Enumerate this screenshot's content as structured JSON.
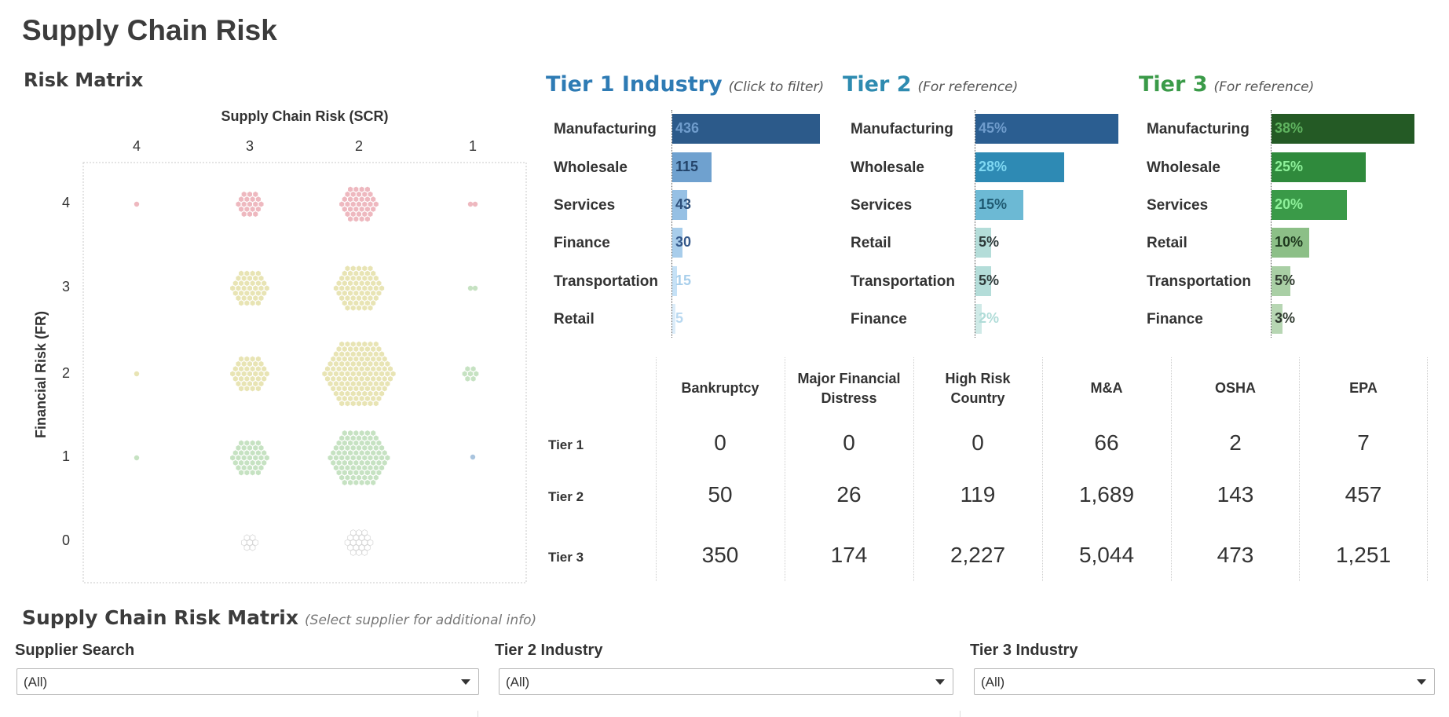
{
  "title": "Supply Chain Risk",
  "risk_matrix": {
    "title": "Risk Matrix",
    "x_label": "Supply Chain Risk (SCR)",
    "y_label": "Financial Risk (FR)",
    "x_ticks": [
      "4",
      "3",
      "2",
      "1"
    ],
    "y_ticks": [
      "4",
      "3",
      "2",
      "1",
      "0"
    ],
    "colors": {
      "red": "#eeb8bf",
      "yellow": "#e8e4b4",
      "green": "#c6e2c2",
      "gray": "#d4d4d4"
    }
  },
  "tier1": {
    "title": "Tier 1 Industry",
    "note": "(Click to filter)",
    "color": "#2e5d8e",
    "rows": [
      {
        "label": "Manufacturing",
        "value": "436",
        "fraction": 1.0
      },
      {
        "label": "Wholesale",
        "value": "115",
        "fraction": 0.264
      },
      {
        "label": "Services",
        "value": "43",
        "fraction": 0.099
      },
      {
        "label": "Finance",
        "value": "30",
        "fraction": 0.069
      },
      {
        "label": "Transportation",
        "value": "15",
        "fraction": 0.034
      },
      {
        "label": "Retail",
        "value": "5",
        "fraction": 0.011
      }
    ]
  },
  "tier2": {
    "title": "Tier 2",
    "note": "(For reference)",
    "color": "#2e8bb0",
    "rows": [
      {
        "label": "Manufacturing",
        "value": "45%",
        "fraction": 1.0
      },
      {
        "label": "Wholesale",
        "value": "28%",
        "fraction": 0.622
      },
      {
        "label": "Services",
        "value": "15%",
        "fraction": 0.333
      },
      {
        "label": "Retail",
        "value": "5%",
        "fraction": 0.111
      },
      {
        "label": "Transportation",
        "value": "5%",
        "fraction": 0.111
      },
      {
        "label": "Finance",
        "value": "2%",
        "fraction": 0.044
      }
    ]
  },
  "tier3": {
    "title": "Tier 3",
    "note": "(For reference)",
    "color": "#2e6b2e",
    "rows": [
      {
        "label": "Manufacturing",
        "value": "38%",
        "fraction": 1.0
      },
      {
        "label": "Wholesale",
        "value": "25%",
        "fraction": 0.658
      },
      {
        "label": "Services",
        "value": "20%",
        "fraction": 0.526
      },
      {
        "label": "Retail",
        "value": "10%",
        "fraction": 0.263
      },
      {
        "label": "Transportation",
        "value": "5%",
        "fraction": 0.132
      },
      {
        "label": "Finance",
        "value": "3%",
        "fraction": 0.079
      }
    ]
  },
  "summary_table": {
    "columns": [
      "Bankruptcy",
      "Major Financial\nDistress",
      "High Risk\nCountry",
      "M&A",
      "OSHA",
      "EPA"
    ],
    "rows": [
      {
        "label": "Tier 1",
        "values": [
          "0",
          "0",
          "0",
          "66",
          "2",
          "7"
        ]
      },
      {
        "label": "Tier 2",
        "values": [
          "50",
          "26",
          "119",
          "1,689",
          "143",
          "457"
        ]
      },
      {
        "label": "Tier 3",
        "values": [
          "350",
          "174",
          "2,227",
          "5,044",
          "473",
          "1,251"
        ]
      }
    ]
  },
  "supplier_matrix": {
    "title": "Supply Chain Risk Matrix",
    "note": "(Select supplier for additional info)"
  },
  "filters": [
    {
      "label": "Supplier Search",
      "value": "(All)"
    },
    {
      "label": "Tier 2 Industry",
      "value": "(All)"
    },
    {
      "label": "Tier 3 Industry",
      "value": "(All)"
    }
  ]
}
